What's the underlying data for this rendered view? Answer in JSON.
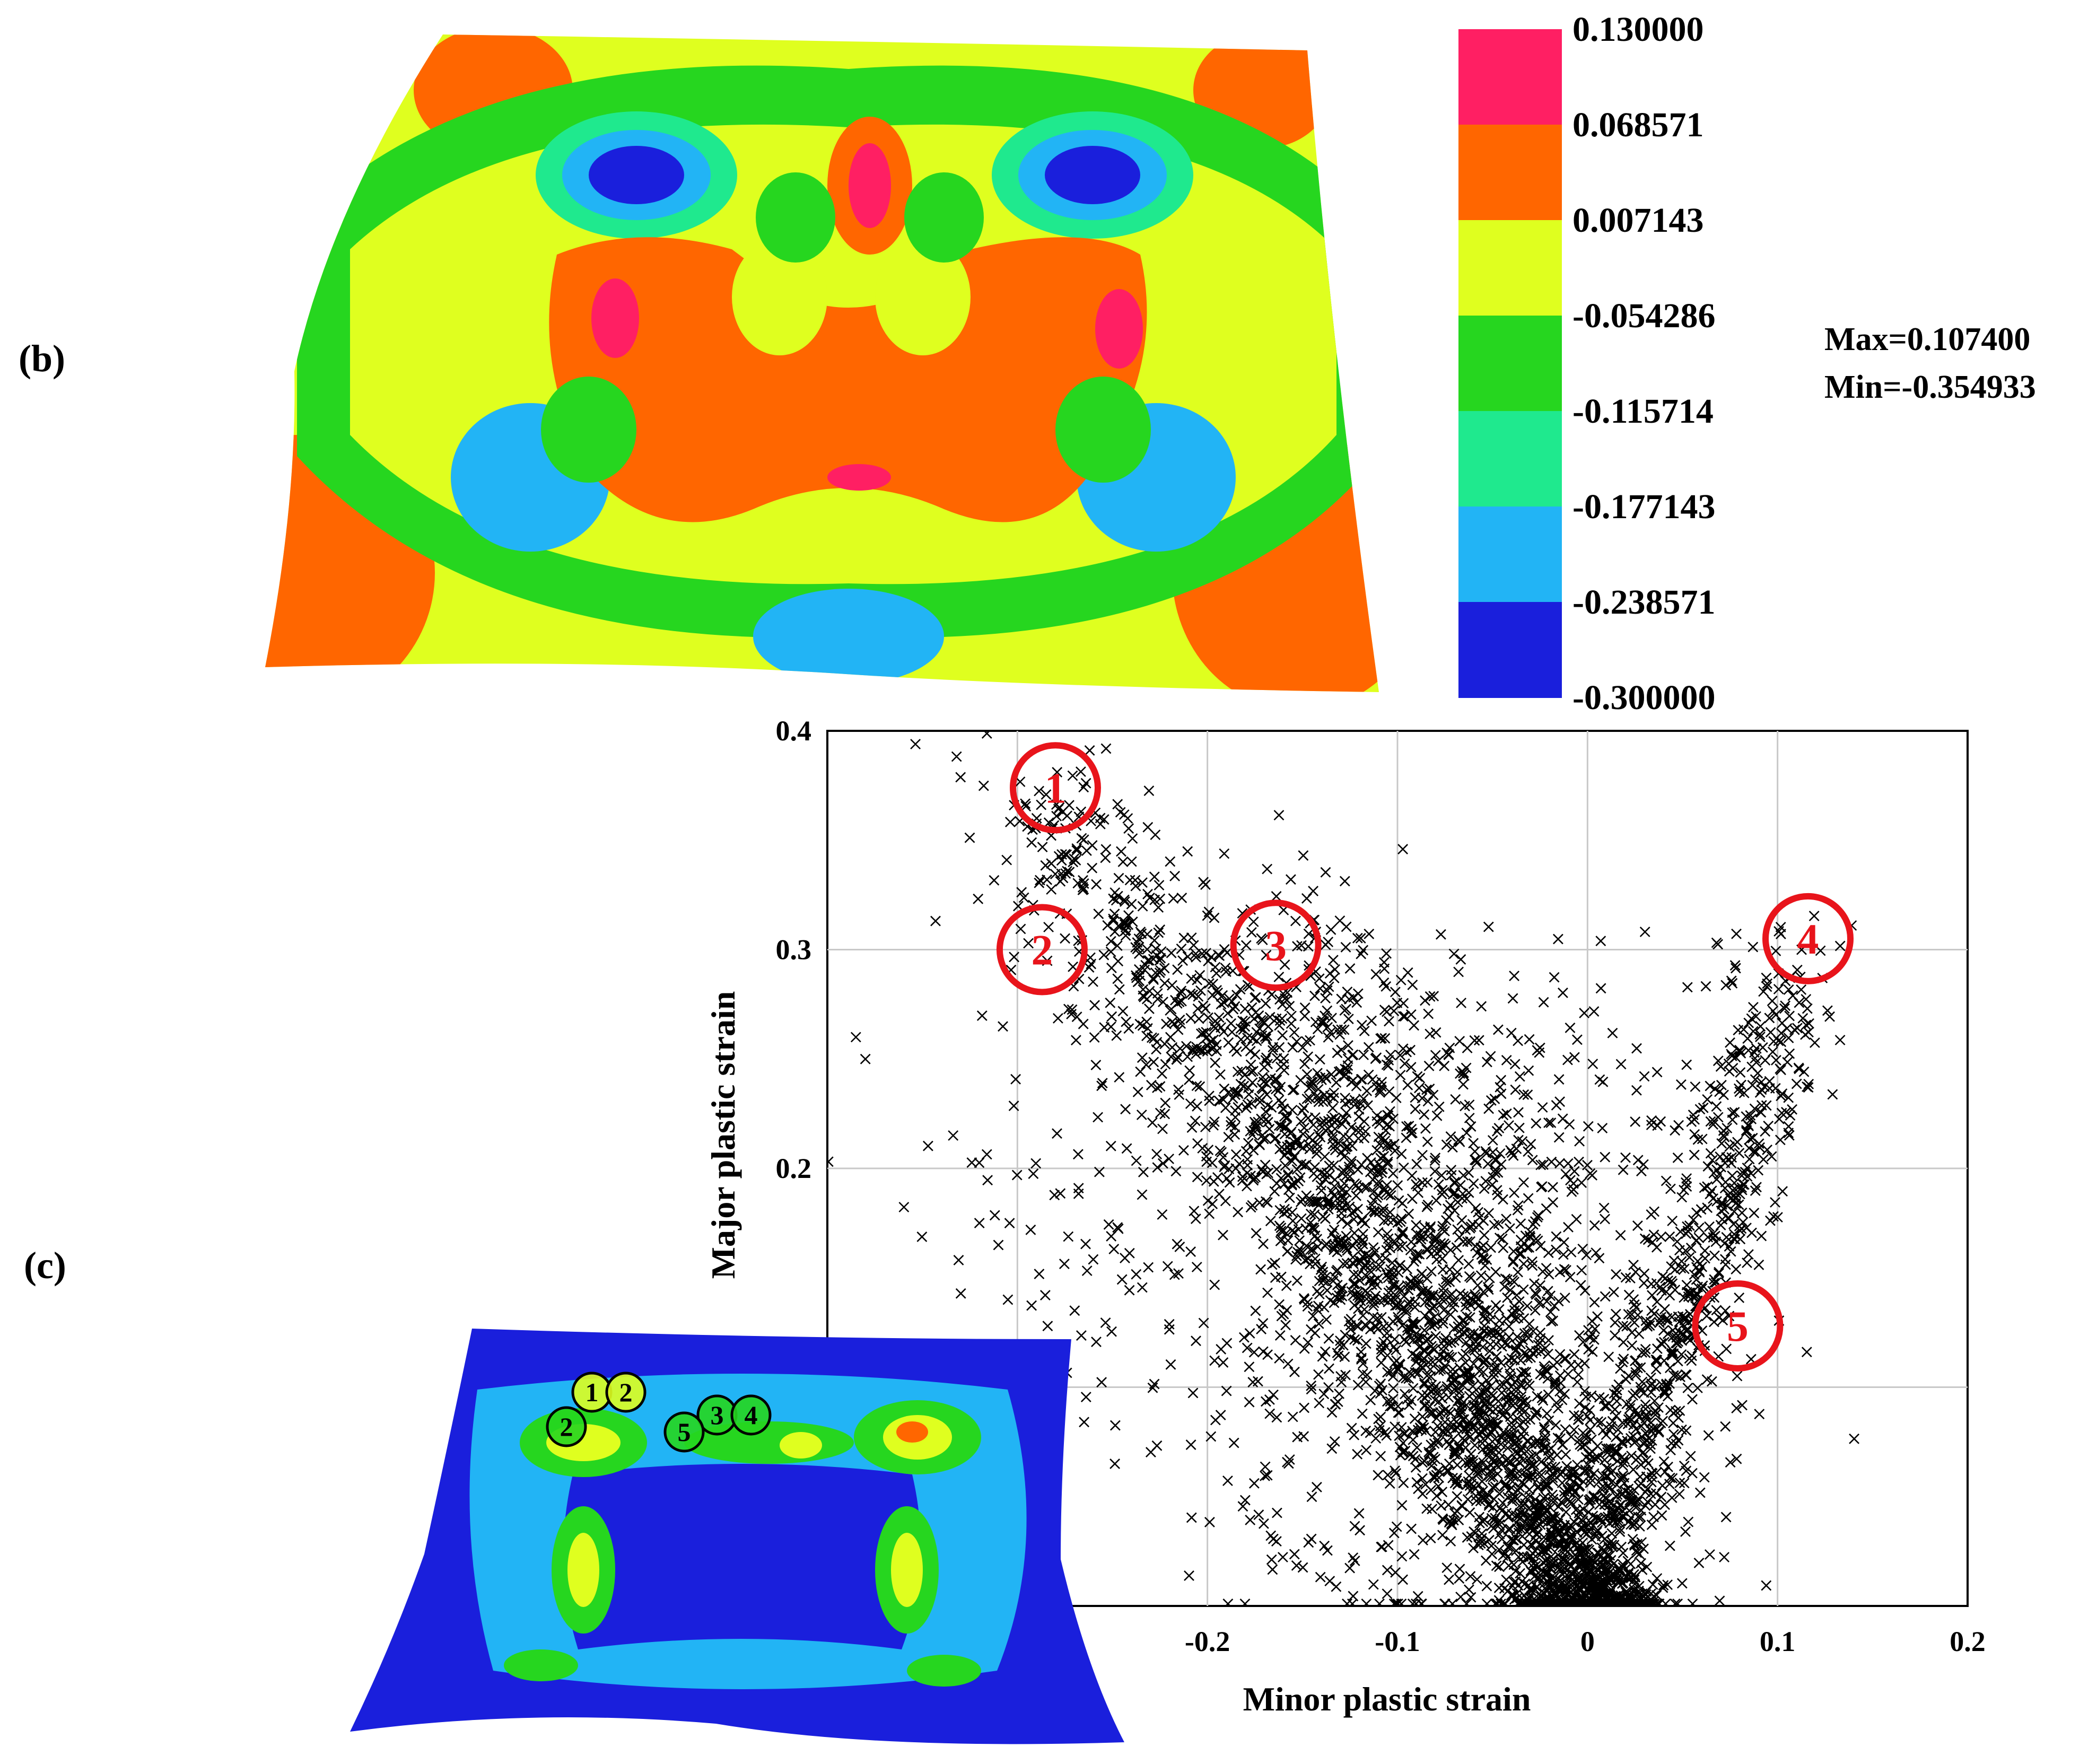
{
  "panel_labels": {
    "b": "(b)",
    "c": "(c)"
  },
  "colors": {
    "band_hot_pink": "#ff1f63",
    "band_orange": "#ff6600",
    "band_yellow": "#dfff1f",
    "band_green": "#26d61f",
    "band_teal": "#1fe98e",
    "band_light_blue": "#22b4f5",
    "band_blue": "#1a1fdc",
    "marker_red": "#e8141b",
    "points": "#000000"
  },
  "legend": {
    "values": [
      "0.130000",
      "0.068571",
      "0.007143",
      "-0.054286",
      "-0.115714",
      "-0.177143",
      "-0.238571",
      "-0.300000"
    ],
    "band_colors": [
      "#ff1f63",
      "#ff6600",
      "#dfff1f",
      "#26d61f",
      "#1fe98e",
      "#22b4f5",
      "#1a1fdc"
    ],
    "max_text": "Max=0.107400",
    "min_text": "Min=-0.354933"
  },
  "chart_data": {
    "type": "scatter",
    "xlabel": "Minor plastic strain",
    "ylabel": "Major plastic strain",
    "xlim": [
      -0.4,
      0.2
    ],
    "ylim": [
      0.0,
      0.4
    ],
    "xticks": [
      -0.2,
      -0.1,
      0,
      0.1,
      0.2
    ],
    "xtick_labels": [
      "-0.2",
      "-0.1",
      "0",
      "0.1",
      "0.2"
    ],
    "yticks": [
      0.2,
      0.3,
      0.4
    ],
    "ytick_labels": [
      "0.2",
      "0.3",
      "0.4"
    ],
    "grid": true,
    "marker": "x",
    "point_clusters": [
      {
        "from": [
          -0.29,
          0.37
        ],
        "to": [
          0.0,
          0.0
        ],
        "count": 1400,
        "spread": 0.022
      },
      {
        "from": [
          -0.16,
          0.31
        ],
        "to": [
          0.0,
          0.0
        ],
        "count": 1100,
        "spread": 0.028
      },
      {
        "from": [
          0.11,
          0.3
        ],
        "to": [
          0.0,
          0.0
        ],
        "count": 750,
        "spread": 0.014
      },
      {
        "from": [
          -0.05,
          0.27
        ],
        "to": [
          0.0,
          0.02
        ],
        "count": 650,
        "spread": 0.045
      },
      {
        "from": [
          -0.28,
          0.22
        ],
        "to": [
          -0.06,
          0.0
        ],
        "count": 350,
        "spread": 0.05
      },
      {
        "from": [
          -0.03,
          0.0
        ],
        "to": [
          0.03,
          0.0
        ],
        "count": 400,
        "spread": 0.01
      }
    ],
    "outliers": [
      [
        -0.38,
        0.25
      ],
      [
        -0.385,
        0.26
      ],
      [
        -0.32,
        0.175
      ],
      [
        -0.31,
        0.165
      ],
      [
        -0.305,
        0.14
      ]
    ],
    "annotations": [
      {
        "label": "1",
        "x": -0.28,
        "y": 0.374
      },
      {
        "label": "2",
        "x": -0.287,
        "y": 0.3
      },
      {
        "label": "3",
        "x": -0.164,
        "y": 0.302
      },
      {
        "label": "4",
        "x": 0.116,
        "y": 0.305
      },
      {
        "label": "5",
        "x": 0.079,
        "y": 0.128
      }
    ]
  },
  "inset": {
    "markers": [
      "1",
      "2",
      "2",
      "3",
      "4",
      "5"
    ]
  }
}
